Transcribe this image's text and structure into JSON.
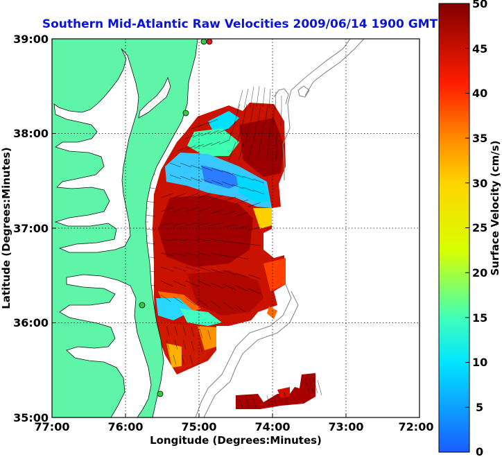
{
  "map": {
    "title": "Southern Mid-Atlantic Raw Velocities 2009/06/14 1900 GMT",
    "xlabel": "Longitude (Degrees:Minutes)",
    "ylabel": "Latitude (Degrees:Minutes)",
    "x_ticks": [
      "77:00",
      "76:00",
      "75:00",
      "74:00",
      "73:00",
      "72:00"
    ],
    "y_ticks": [
      "39:00",
      "38:00",
      "37:00",
      "36:00",
      "35:00"
    ],
    "lon_range": [
      -77,
      -72
    ],
    "lat_range": [
      35,
      39
    ],
    "grid": "dotted"
  },
  "colorbar": {
    "label": "Surface Velocity (cm/s)",
    "ticks": [
      "50",
      "45",
      "40",
      "35",
      "30",
      "25",
      "20",
      "15",
      "10",
      "5",
      "0"
    ],
    "range": [
      0,
      50
    ]
  },
  "colors": {
    "land": "#5ef5a8",
    "title": "#0a14d8",
    "station": "#2ecc40",
    "station_active": "#e8141e"
  }
}
